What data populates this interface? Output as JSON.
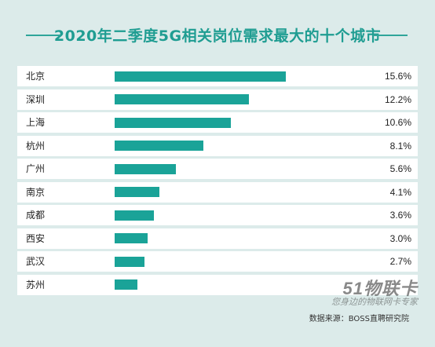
{
  "header": {
    "title": "2020年二季度5G相关岗位需求最大的十个城市"
  },
  "chart_data": {
    "type": "bar",
    "orientation": "horizontal",
    "title": "2020年二季度5G相关岗位需求最大的十个城市",
    "categories": [
      "北京",
      "深圳",
      "上海",
      "杭州",
      "广州",
      "南京",
      "成都",
      "西安",
      "武汉",
      "苏州"
    ],
    "values": [
      15.6,
      12.2,
      10.6,
      8.1,
      5.6,
      4.1,
      3.6,
      3.0,
      2.7,
      2.1
    ],
    "value_labels": [
      "15.6%",
      "12.2%",
      "10.6%",
      "8.1%",
      "5.6%",
      "4.1%",
      "3.6%",
      "3.0%",
      "2.7%",
      ""
    ],
    "xlim": [
      0,
      24
    ],
    "unit": "%",
    "colors": {
      "bar": "#1aa398",
      "track": "#ffffff",
      "background": "#dcebea",
      "title": "#1f9d92"
    }
  },
  "footer": {
    "source": "数据来源：BOSS直聘研究院",
    "watermark": "51物联卡",
    "watermark_sub": "您身边的物联网卡专家"
  }
}
